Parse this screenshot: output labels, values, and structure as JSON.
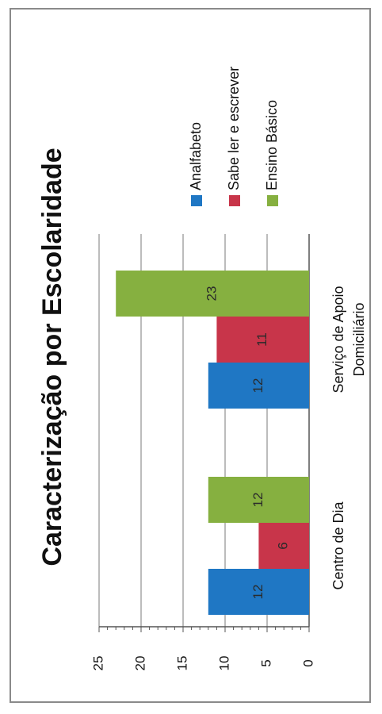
{
  "chart_data": {
    "type": "bar",
    "orientation": "rotated-90-ccw",
    "title": "Caracterização por Escolaridade",
    "categories": [
      "Centro de Dia",
      "Serviço de Apoio Domiciliário"
    ],
    "category_label_lines": [
      [
        "Centro de Dia"
      ],
      [
        "Serviço de Apoio",
        "Domiciliário"
      ]
    ],
    "series": [
      {
        "name": "Analfabeto",
        "color": "#1f77c4",
        "values": [
          12,
          12
        ]
      },
      {
        "name": "Sabe ler e escrever",
        "color": "#c8354a",
        "values": [
          6,
          11
        ]
      },
      {
        "name": "Ensino Básico",
        "color": "#86b040",
        "values": [
          12,
          23
        ]
      }
    ],
    "yticks": [
      0,
      5,
      10,
      15,
      20,
      25
    ],
    "ylim": [
      0,
      25
    ],
    "xlabel": "",
    "ylabel": "",
    "grid": true,
    "legend": "right",
    "data_labels": true
  }
}
